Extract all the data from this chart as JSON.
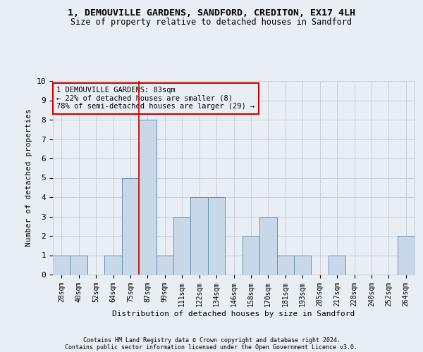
{
  "title_line1": "1, DEMOUVILLE GARDENS, SANDFORD, CREDITON, EX17 4LH",
  "title_line2": "Size of property relative to detached houses in Sandford",
  "xlabel": "Distribution of detached houses by size in Sandford",
  "ylabel": "Number of detached properties",
  "bin_labels": [
    "28sqm",
    "40sqm",
    "52sqm",
    "64sqm",
    "75sqm",
    "87sqm",
    "99sqm",
    "111sqm",
    "122sqm",
    "134sqm",
    "146sqm",
    "158sqm",
    "170sqm",
    "181sqm",
    "193sqm",
    "205sqm",
    "217sqm",
    "228sqm",
    "240sqm",
    "252sqm",
    "264sqm"
  ],
  "bar_heights": [
    1,
    1,
    0,
    1,
    5,
    8,
    1,
    3,
    4,
    4,
    0,
    2,
    3,
    1,
    1,
    0,
    1,
    0,
    0,
    0,
    2
  ],
  "bar_color": "#c8d8e8",
  "bar_edge_color": "#6090b8",
  "grid_color": "#c8d0dc",
  "annotation_box_text": "1 DEMOUVILLE GARDENS: 83sqm\n← 22% of detached houses are smaller (8)\n78% of semi-detached houses are larger (29) →",
  "annotation_box_color": "#cc0000",
  "property_line_x": 4.5,
  "ylim": [
    0,
    10
  ],
  "yticks": [
    0,
    1,
    2,
    3,
    4,
    5,
    6,
    7,
    8,
    9,
    10
  ],
  "footnote1": "Contains HM Land Registry data © Crown copyright and database right 2024.",
  "footnote2": "Contains public sector information licensed under the Open Government Licence v3.0.",
  "background_color": "#e8eef4",
  "axes_background_color": "#e8eef4"
}
